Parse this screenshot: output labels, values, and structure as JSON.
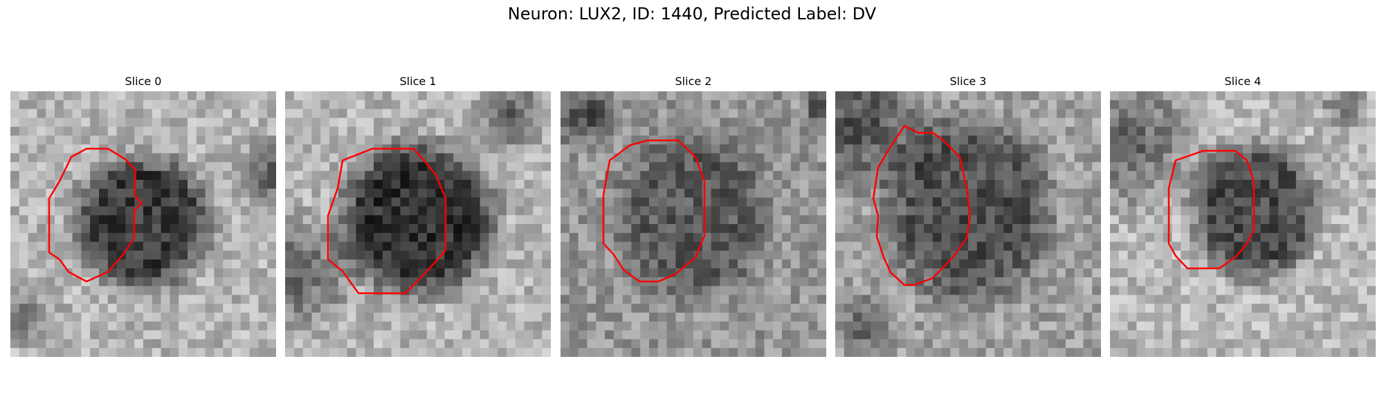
{
  "figure": {
    "title": "Neuron: LUX2, ID: 1440, Predicted Label: DV"
  },
  "panels": [
    {
      "title": "Slice 0",
      "seed": 11
    },
    {
      "title": "Slice 1",
      "seed": 23
    },
    {
      "title": "Slice 2",
      "seed": 37
    },
    {
      "title": "Slice 3",
      "seed": 51
    },
    {
      "title": "Slice 4",
      "seed": 67
    }
  ],
  "colors": {
    "contour": "#ff0000",
    "background": "#ffffff"
  }
}
